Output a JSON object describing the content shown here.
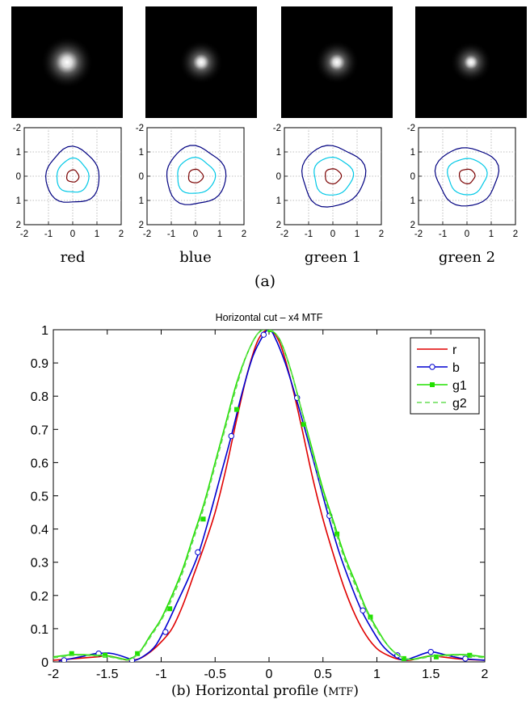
{
  "panel_a": {
    "caption": "(a)",
    "axis_ticks": [
      "-2",
      "-1",
      "0",
      "1",
      "2"
    ],
    "subplots": [
      {
        "label": "red",
        "psf_spread": 0.95,
        "contour_radii": [
          [
            0.25,
            0.25
          ],
          [
            0.66,
            0.7
          ],
          [
            1.1,
            1.15
          ]
        ]
      },
      {
        "label": "blue",
        "psf_spread": 0.8,
        "contour_radii": [
          [
            0.3,
            0.28
          ],
          [
            0.78,
            0.74
          ],
          [
            1.22,
            1.2
          ]
        ]
      },
      {
        "label": "green 1",
        "psf_spread": 0.8,
        "contour_radii": [
          [
            0.33,
            0.31
          ],
          [
            0.8,
            0.78
          ],
          [
            1.3,
            1.25
          ]
        ]
      },
      {
        "label": "green 2",
        "psf_spread": 0.75,
        "contour_radii": [
          [
            0.32,
            0.3
          ],
          [
            0.8,
            0.75
          ],
          [
            1.28,
            1.2
          ]
        ]
      }
    ],
    "contour_colors": [
      "#7a0000",
      "#00c8e6",
      "#000080"
    ]
  },
  "panel_b_caption": {
    "prefix": "(b) Horizontal profile (",
    "smallcaps": "MTF",
    "suffix": ")"
  },
  "chart_data": {
    "type": "line",
    "title": "Horizontal cut – x4 MTF",
    "xlabel": "",
    "ylabel": "",
    "xlim": [
      -2,
      2
    ],
    "ylim": [
      0,
      1
    ],
    "xticks": [
      "-2",
      "-1.5",
      "-1",
      "-0.5",
      "0",
      "0.5",
      "1",
      "1.5",
      "2"
    ],
    "yticks": [
      "0",
      "0.1",
      "0.2",
      "0.3",
      "0.4",
      "0.5",
      "0.6",
      "0.7",
      "0.8",
      "0.9",
      "1"
    ],
    "legend_position": "top-right",
    "series": [
      {
        "name": "r",
        "color": "#e00000",
        "marker": "none",
        "dash": "solid",
        "x": [
          -2.0,
          -1.8,
          -1.6,
          -1.5,
          -1.4,
          -1.3,
          -1.2,
          -1.1,
          -1.0,
          -0.9,
          -0.8,
          -0.7,
          -0.6,
          -0.5,
          -0.4,
          -0.3,
          -0.2,
          -0.1,
          0.0,
          0.1,
          0.2,
          0.3,
          0.4,
          0.5,
          0.6,
          0.7,
          0.8,
          0.9,
          1.0,
          1.1,
          1.2,
          1.3,
          1.4,
          1.5,
          1.6,
          1.8,
          2.0
        ],
        "y": [
          0.005,
          0.01,
          0.015,
          0.018,
          0.012,
          0.005,
          0.01,
          0.03,
          0.06,
          0.1,
          0.17,
          0.26,
          0.35,
          0.45,
          0.58,
          0.73,
          0.87,
          0.97,
          1.0,
          0.96,
          0.85,
          0.71,
          0.56,
          0.43,
          0.32,
          0.22,
          0.14,
          0.08,
          0.04,
          0.02,
          0.008,
          0.005,
          0.012,
          0.018,
          0.015,
          0.008,
          0.005
        ]
      },
      {
        "name": "b",
        "color": "#0000d0",
        "marker": "circle",
        "dash": "solid",
        "x": [
          -1.95,
          -1.75,
          -1.6,
          -1.45,
          -1.3,
          -1.25,
          -1.15,
          -1.05,
          -0.95,
          -0.85,
          -0.75,
          -0.65,
          -0.55,
          -0.45,
          -0.35,
          -0.25,
          -0.15,
          -0.05,
          0.0,
          0.05,
          0.15,
          0.25,
          0.35,
          0.45,
          0.55,
          0.65,
          0.75,
          0.85,
          0.95,
          1.05,
          1.15,
          1.25,
          1.35,
          1.5,
          1.65,
          1.8,
          2.0
        ],
        "y": [
          0.003,
          0.015,
          0.025,
          0.025,
          0.01,
          0.004,
          0.02,
          0.05,
          0.11,
          0.18,
          0.25,
          0.33,
          0.44,
          0.56,
          0.68,
          0.81,
          0.92,
          0.985,
          1.0,
          0.98,
          0.9,
          0.795,
          0.68,
          0.56,
          0.44,
          0.33,
          0.24,
          0.16,
          0.1,
          0.05,
          0.02,
          0.005,
          0.015,
          0.03,
          0.02,
          0.01,
          0.005
        ],
        "markers": [
          [
            -1.9,
            0.005
          ],
          [
            -1.58,
            0.025
          ],
          [
            -1.27,
            0.005
          ],
          [
            -0.96,
            0.09
          ],
          [
            -0.66,
            0.33
          ],
          [
            -0.35,
            0.68
          ],
          [
            -0.05,
            0.985
          ],
          [
            0.26,
            0.795
          ],
          [
            0.56,
            0.44
          ],
          [
            0.87,
            0.155
          ],
          [
            1.19,
            0.02
          ],
          [
            1.5,
            0.03
          ],
          [
            1.82,
            0.01
          ]
        ]
      },
      {
        "name": "g1",
        "color": "#22e000",
        "marker": "square",
        "dash": "solid",
        "x": [
          -2.0,
          -1.8,
          -1.6,
          -1.5,
          -1.4,
          -1.3,
          -1.2,
          -1.1,
          -1.0,
          -0.9,
          -0.8,
          -0.7,
          -0.6,
          -0.5,
          -0.4,
          -0.3,
          -0.2,
          -0.1,
          0.0,
          0.1,
          0.2,
          0.3,
          0.4,
          0.5,
          0.6,
          0.7,
          0.8,
          0.9,
          1.0,
          1.1,
          1.2,
          1.3,
          1.4,
          1.5,
          1.6,
          1.8,
          2.0
        ],
        "y": [
          0.015,
          0.022,
          0.02,
          0.018,
          0.012,
          0.008,
          0.03,
          0.08,
          0.13,
          0.2,
          0.28,
          0.38,
          0.48,
          0.6,
          0.72,
          0.84,
          0.93,
          0.99,
          1.0,
          0.97,
          0.88,
          0.76,
          0.64,
          0.52,
          0.42,
          0.32,
          0.24,
          0.16,
          0.1,
          0.05,
          0.02,
          0.008,
          0.012,
          0.018,
          0.02,
          0.022,
          0.015
        ],
        "markers": [
          [
            -1.83,
            0.025
          ],
          [
            -1.52,
            0.02
          ],
          [
            -1.22,
            0.025
          ],
          [
            -0.92,
            0.16
          ],
          [
            -0.61,
            0.43
          ],
          [
            -0.3,
            0.76
          ],
          [
            0.01,
            1.0
          ],
          [
            0.32,
            0.715
          ],
          [
            0.63,
            0.385
          ],
          [
            0.94,
            0.135
          ],
          [
            1.25,
            0.01
          ],
          [
            1.55,
            0.015
          ],
          [
            1.86,
            0.02
          ]
        ]
      },
      {
        "name": "g2",
        "color": "#66dd55",
        "marker": "none",
        "dash": "dashed",
        "x": [
          -2.0,
          -1.8,
          -1.6,
          -1.5,
          -1.4,
          -1.3,
          -1.2,
          -1.1,
          -1.0,
          -0.9,
          -0.8,
          -0.7,
          -0.6,
          -0.5,
          -0.4,
          -0.3,
          -0.2,
          -0.1,
          0.0,
          0.1,
          0.2,
          0.3,
          0.4,
          0.5,
          0.6,
          0.7,
          0.8,
          0.9,
          1.0,
          1.1,
          1.2,
          1.3,
          1.4,
          1.5,
          1.6,
          1.8,
          2.0
        ],
        "y": [
          0.012,
          0.02,
          0.018,
          0.016,
          0.01,
          0.006,
          0.028,
          0.075,
          0.125,
          0.19,
          0.27,
          0.37,
          0.47,
          0.59,
          0.71,
          0.83,
          0.93,
          0.99,
          1.0,
          0.97,
          0.88,
          0.76,
          0.63,
          0.51,
          0.41,
          0.31,
          0.23,
          0.155,
          0.095,
          0.05,
          0.02,
          0.007,
          0.01,
          0.016,
          0.018,
          0.02,
          0.012
        ]
      }
    ]
  }
}
